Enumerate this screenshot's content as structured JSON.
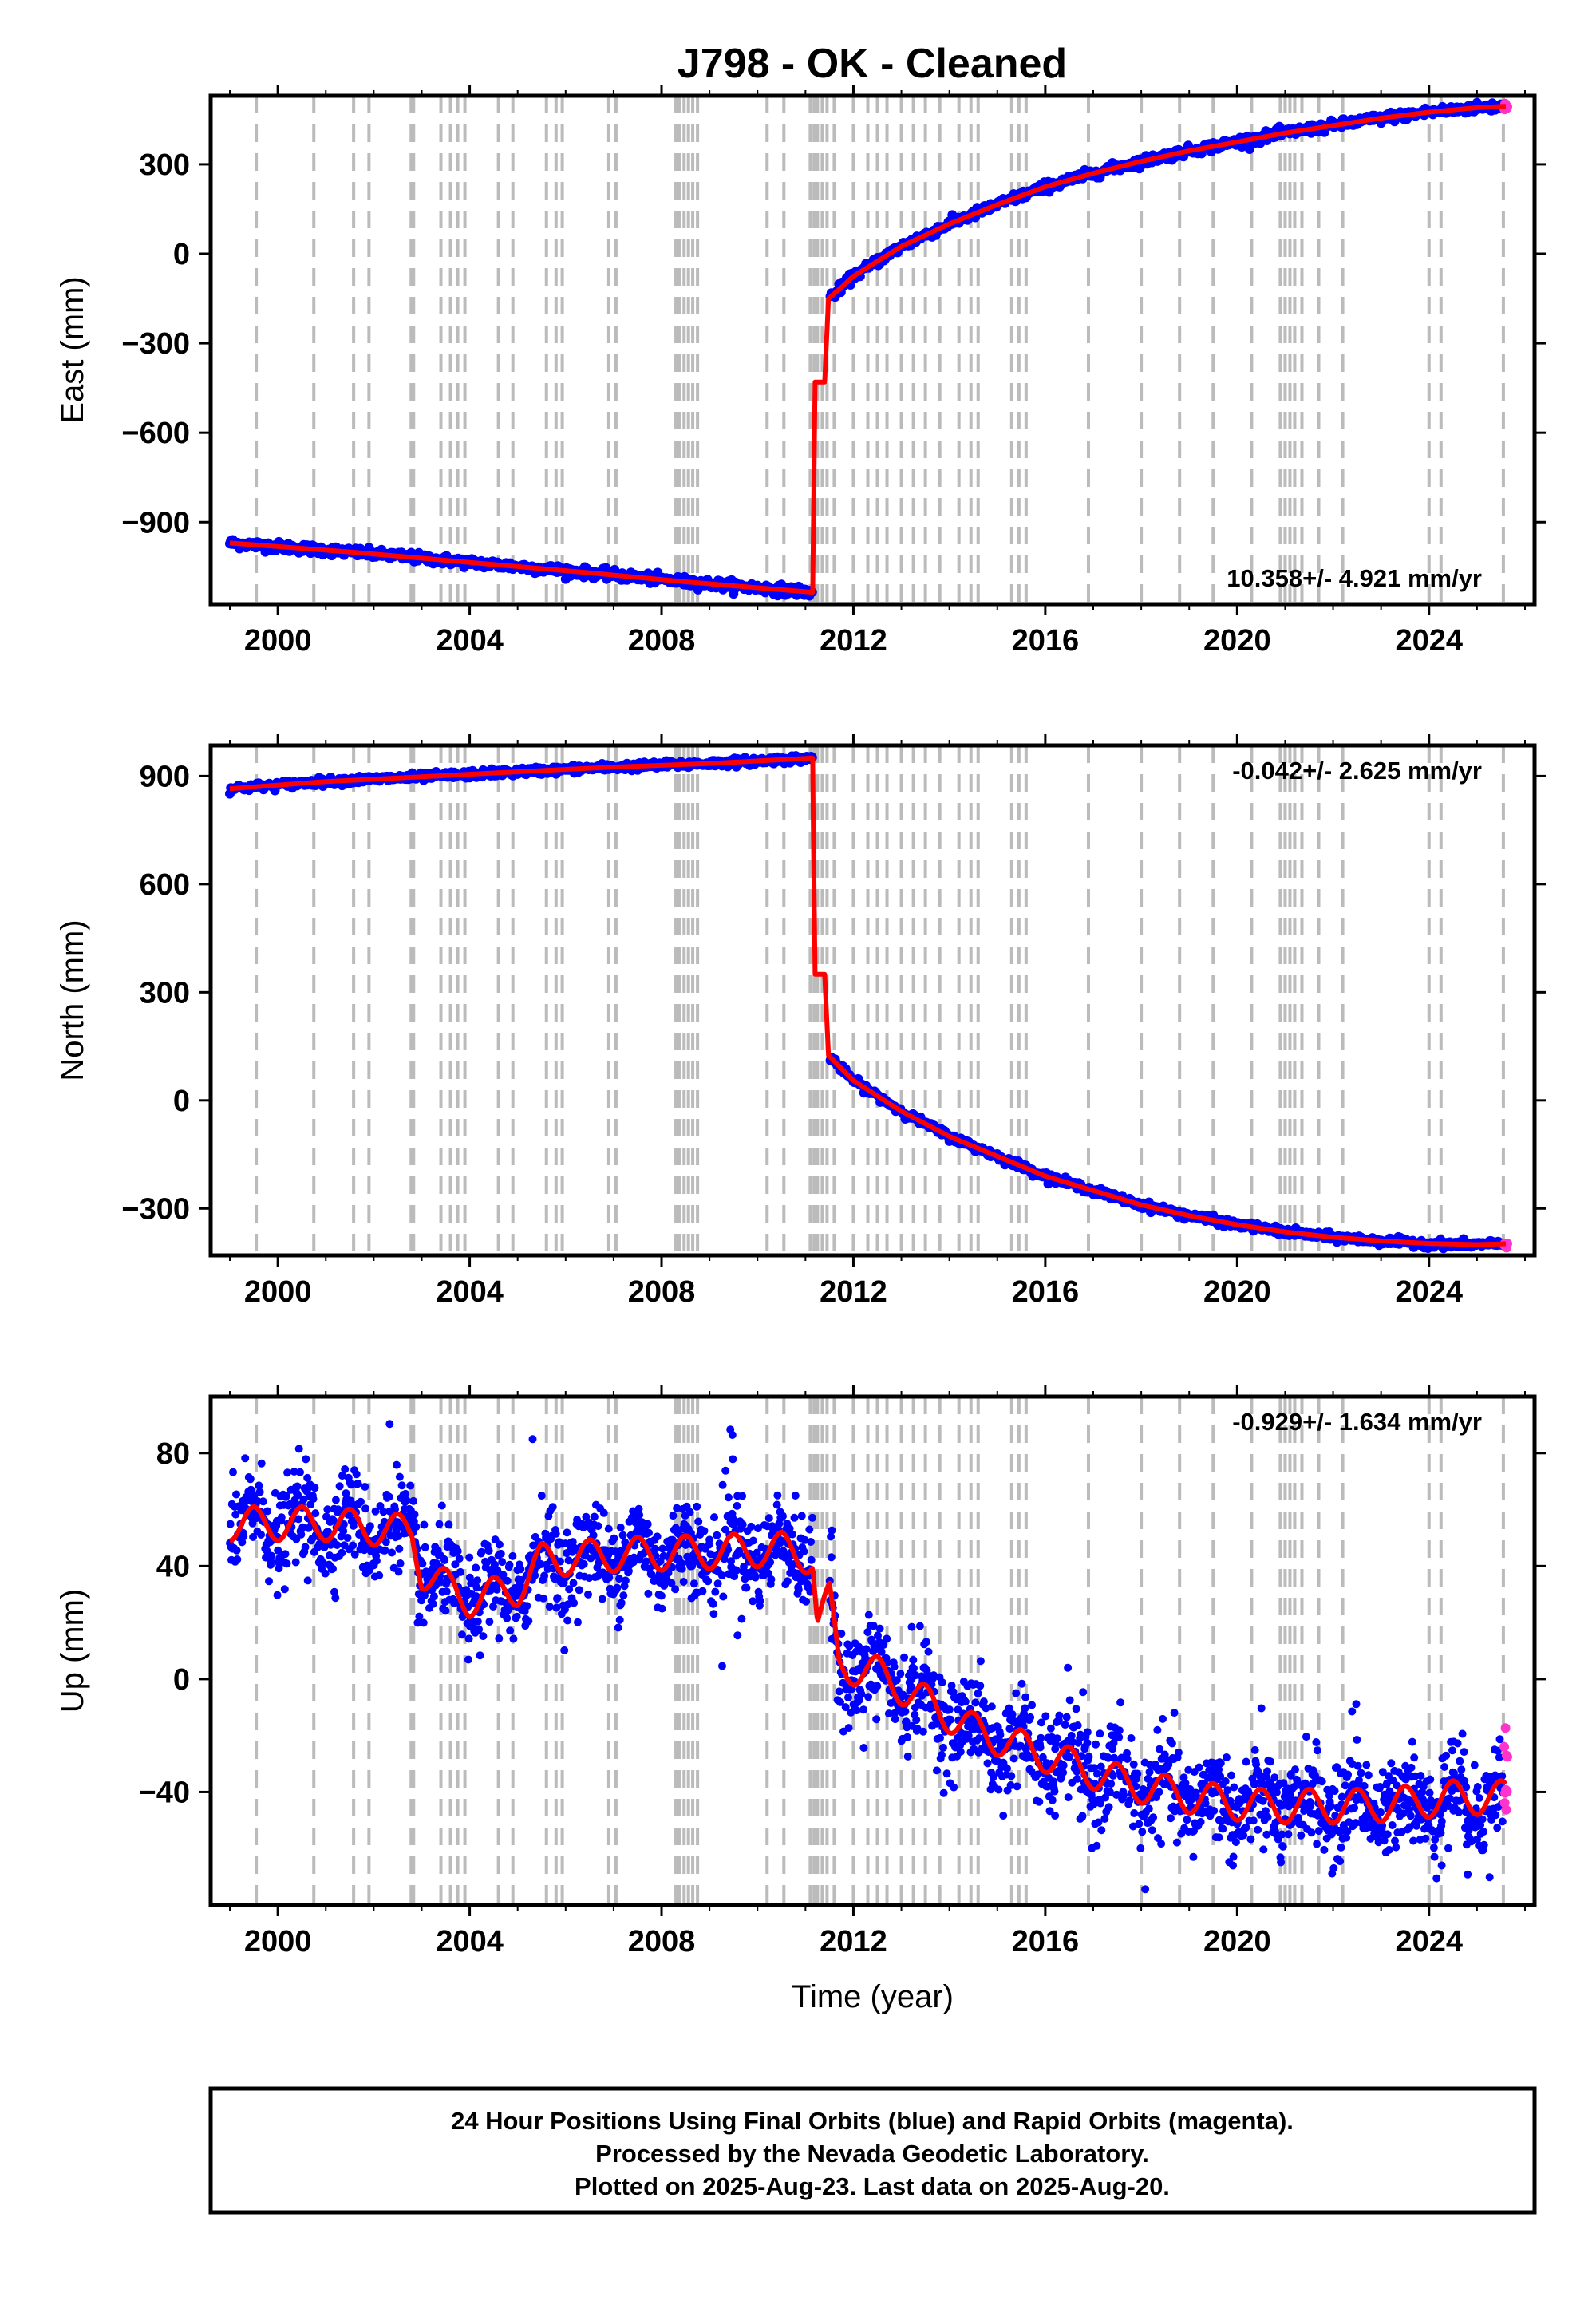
{
  "title": "J798  - OK - Cleaned",
  "caption": [
    "24 Hour Positions Using Final Orbits (blue) and Rapid Orbits (magenta).",
    "Processed by the Nevada Geodetic Laboratory.",
    "Plotted on 2025-Aug-23. Last data on 2025-Aug-20."
  ],
  "colors": {
    "final": "#0000ff",
    "rapid": "#ff33cc",
    "model": "#ff0000",
    "event_line": "#bbbbbb"
  },
  "chart_data": [
    {
      "type": "scatter",
      "name": "East",
      "ylabel": "East (mm)",
      "xlabel": "",
      "xlim": [
        1998.6,
        2026.2
      ],
      "ylim": [
        -1175,
        530
      ],
      "xticks": [
        2000,
        2004,
        2008,
        2012,
        2016,
        2020,
        2024
      ],
      "xtick_labels": [
        "2000",
        "2004",
        "2008",
        "2012",
        "2016",
        "2020",
        "2024"
      ],
      "yticks": [
        -900,
        -600,
        -300,
        0,
        300
      ],
      "ytick_labels": [
        "−900",
        "−600",
        "−300",
        "0",
        "300"
      ],
      "rate_text": "10.358+/- 4.921 mm/yr",
      "rate_position": "bottom-right",
      "model": [
        [
          1999.0,
          -970
        ],
        [
          2001.5,
          -1000
        ],
        [
          2004.0,
          -1035
        ],
        [
          2006.5,
          -1070
        ],
        [
          2008.5,
          -1100
        ],
        [
          2011.15,
          -1135
        ],
        [
          2011.16,
          -990
        ],
        [
          2011.2,
          -430
        ],
        [
          2011.4,
          -430
        ],
        [
          2011.48,
          -150
        ],
        [
          2011.7,
          -120
        ],
        [
          2012.0,
          -75
        ],
        [
          2013.0,
          25
        ],
        [
          2014.0,
          100
        ],
        [
          2015.0,
          165
        ],
        [
          2016.0,
          225
        ],
        [
          2017.0,
          270
        ],
        [
          2018.0,
          310
        ],
        [
          2019.0,
          345
        ],
        [
          2020.0,
          375
        ],
        [
          2021.0,
          405
        ],
        [
          2022.0,
          430
        ],
        [
          2023.0,
          455
        ],
        [
          2024.0,
          475
        ],
        [
          2025.0,
          490
        ],
        [
          2025.6,
          495
        ]
      ],
      "scatter_noise": 8
    },
    {
      "type": "scatter",
      "name": "North",
      "ylabel": "North (mm)",
      "xlabel": "",
      "xlim": [
        1998.6,
        2026.2
      ],
      "ylim": [
        -430,
        985
      ],
      "xticks": [
        2000,
        2004,
        2008,
        2012,
        2016,
        2020,
        2024
      ],
      "xtick_labels": [
        "2000",
        "2004",
        "2008",
        "2012",
        "2016",
        "2020",
        "2024"
      ],
      "yticks": [
        -300,
        0,
        300,
        600,
        900
      ],
      "ytick_labels": [
        "−300",
        "0",
        "300",
        "600",
        "900"
      ],
      "rate_text": "-0.042+/- 2.625 mm/yr",
      "rate_position": "top-right",
      "model": [
        [
          1999.0,
          865
        ],
        [
          2001.0,
          885
        ],
        [
          2003.0,
          898
        ],
        [
          2005.0,
          912
        ],
        [
          2007.0,
          925
        ],
        [
          2009.0,
          935
        ],
        [
          2011.15,
          950
        ],
        [
          2011.16,
          800
        ],
        [
          2011.2,
          350
        ],
        [
          2011.4,
          350
        ],
        [
          2011.48,
          125
        ],
        [
          2011.7,
          95
        ],
        [
          2012.0,
          55
        ],
        [
          2013.0,
          -30
        ],
        [
          2014.0,
          -100
        ],
        [
          2015.0,
          -155
        ],
        [
          2016.0,
          -210
        ],
        [
          2017.0,
          -250
        ],
        [
          2018.0,
          -290
        ],
        [
          2019.0,
          -320
        ],
        [
          2020.0,
          -345
        ],
        [
          2021.0,
          -365
        ],
        [
          2022.0,
          -380
        ],
        [
          2023.0,
          -390
        ],
        [
          2024.0,
          -397
        ],
        [
          2025.0,
          -400
        ],
        [
          2025.6,
          -398
        ]
      ],
      "scatter_noise": 5
    },
    {
      "type": "scatter",
      "name": "Up",
      "ylabel": "Up (mm)",
      "xlabel": "Time (year)",
      "xlim": [
        1998.6,
        2026.2
      ],
      "ylim": [
        -80,
        100
      ],
      "xticks": [
        2000,
        2004,
        2008,
        2012,
        2016,
        2020,
        2024
      ],
      "xtick_labels": [
        "2000",
        "2004",
        "2008",
        "2012",
        "2016",
        "2020",
        "2024"
      ],
      "yticks": [
        -40,
        0,
        40,
        80
      ],
      "ytick_labels": [
        "−40",
        "0",
        "40",
        "80"
      ],
      "rate_text": "-0.929+/- 1.634 mm/yr",
      "rate_position": "top-right",
      "model": [
        [
          1999.0,
          55
        ],
        [
          2001.0,
          55
        ],
        [
          2002.8,
          52
        ],
        [
          2003.0,
          38
        ],
        [
          2004.0,
          28
        ],
        [
          2005.0,
          32
        ],
        [
          2005.5,
          42
        ],
        [
          2007.0,
          44
        ],
        [
          2009.0,
          45
        ],
        [
          2010.5,
          46
        ],
        [
          2011.15,
          43
        ],
        [
          2011.25,
          20
        ],
        [
          2011.5,
          28
        ],
        [
          2011.7,
          5
        ],
        [
          2012.5,
          2
        ],
        [
          2013.5,
          -8
        ],
        [
          2014.5,
          -18
        ],
        [
          2015.5,
          -24
        ],
        [
          2016.5,
          -30
        ],
        [
          2017.5,
          -36
        ],
        [
          2018.5,
          -40
        ],
        [
          2019.5,
          -43
        ],
        [
          2020.5,
          -45
        ],
        [
          2021.5,
          -45
        ],
        [
          2022.5,
          -45
        ],
        [
          2023.5,
          -44
        ],
        [
          2024.5,
          -42
        ],
        [
          2025.6,
          -42
        ]
      ],
      "seasonal_amplitude": 6,
      "scatter_noise": 8
    }
  ],
  "event_lines": [
    1999.55,
    2000.75,
    2001.58,
    2001.9,
    2002.78,
    2002.83,
    2003.4,
    2003.6,
    2003.75,
    2003.9,
    2004.6,
    2004.9,
    2005.6,
    2005.8,
    2005.93,
    2006.9,
    2007.05,
    2008.3,
    2008.38,
    2008.47,
    2008.56,
    2008.65,
    2008.75,
    2010.2,
    2010.55,
    2011.1,
    2011.18,
    2011.25,
    2011.35,
    2011.45,
    2011.6,
    2012.0,
    2012.3,
    2012.5,
    2012.7,
    2013.0,
    2013.25,
    2013.5,
    2013.8,
    2014.2,
    2014.45,
    2014.6,
    2015.3,
    2015.45,
    2015.6,
    2016.9,
    2018.0,
    2018.8,
    2019.5,
    2020.3,
    2020.9,
    2021.0,
    2021.1,
    2021.2,
    2021.35,
    2021.7,
    2022.2,
    2024.0,
    2024.25,
    2025.55
  ]
}
